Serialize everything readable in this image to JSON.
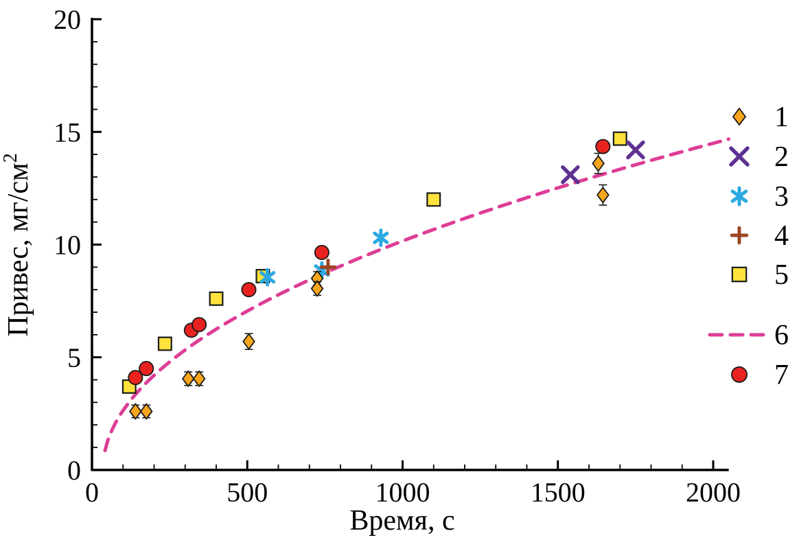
{
  "figure": {
    "background": "#ffffff",
    "axis_color": "#000000"
  },
  "chart_data": {
    "type": "scatter",
    "title": "",
    "xlabel": "Время, с",
    "ylabel": "Привес, мг/см",
    "ylabel_superscript": "2",
    "xlim": [
      0,
      2050
    ],
    "ylim": [
      0,
      20
    ],
    "x_ticks": [
      "0",
      "500",
      "1000",
      "1500",
      "2000"
    ],
    "x_tick_values": [
      0,
      500,
      1000,
      1500,
      2000
    ],
    "y_ticks": [
      "0",
      "5",
      "10",
      "15",
      "20"
    ],
    "y_tick_values": [
      0,
      5,
      10,
      15,
      20
    ],
    "x_minor_step": 100,
    "y_minor_step": 1,
    "grid": false,
    "legend_position": "right-outside",
    "series": [
      {
        "name": "1",
        "marker": "diamond",
        "color": "#F6A51C",
        "edge": "#1a1a1a",
        "error_bars": true,
        "points": [
          [
            140,
            2.6,
            0.28
          ],
          [
            175,
            2.6,
            0.28
          ],
          [
            310,
            4.05,
            0.3
          ],
          [
            345,
            4.05,
            0.3
          ],
          [
            505,
            5.7,
            0.35
          ],
          [
            725,
            8.5,
            0.3
          ],
          [
            725,
            8.05,
            0.3
          ],
          [
            1630,
            13.6,
            0.45
          ],
          [
            1645,
            12.2,
            0.45
          ]
        ]
      },
      {
        "name": "2",
        "marker": "x",
        "color": "#5E3192",
        "points": [
          [
            1540,
            13.1
          ],
          [
            1750,
            14.2
          ]
        ]
      },
      {
        "name": "3",
        "marker": "asterisk",
        "color": "#2CA9E1",
        "points": [
          [
            565,
            8.55
          ],
          [
            740,
            8.85
          ],
          [
            930,
            10.3
          ]
        ]
      },
      {
        "name": "4",
        "marker": "plus",
        "color": "#9B4722",
        "points": [
          [
            760,
            9.0
          ]
        ]
      },
      {
        "name": "5",
        "marker": "square",
        "color": "#FFE23C",
        "edge": "#1a1a1a",
        "points": [
          [
            120,
            3.7
          ],
          [
            235,
            5.6
          ],
          [
            400,
            7.6
          ],
          [
            550,
            8.6
          ],
          [
            1100,
            12.0
          ],
          [
            1700,
            14.7
          ]
        ]
      },
      {
        "name": "6",
        "marker": "dashed-line",
        "color": "#DE3D96",
        "fit": {
          "expression": "y = 0.327·sqrt(x − 35)",
          "a": 0.327,
          "x0": 35,
          "x_range": [
            42,
            2055
          ]
        }
      },
      {
        "name": "7",
        "marker": "circle",
        "color": "#E8231F",
        "edge": "#1a1a1a",
        "points": [
          [
            140,
            4.1
          ],
          [
            175,
            4.5
          ],
          [
            320,
            6.2
          ],
          [
            345,
            6.45
          ],
          [
            505,
            8.0
          ],
          [
            740,
            9.65
          ],
          [
            1645,
            14.35
          ]
        ]
      }
    ]
  }
}
